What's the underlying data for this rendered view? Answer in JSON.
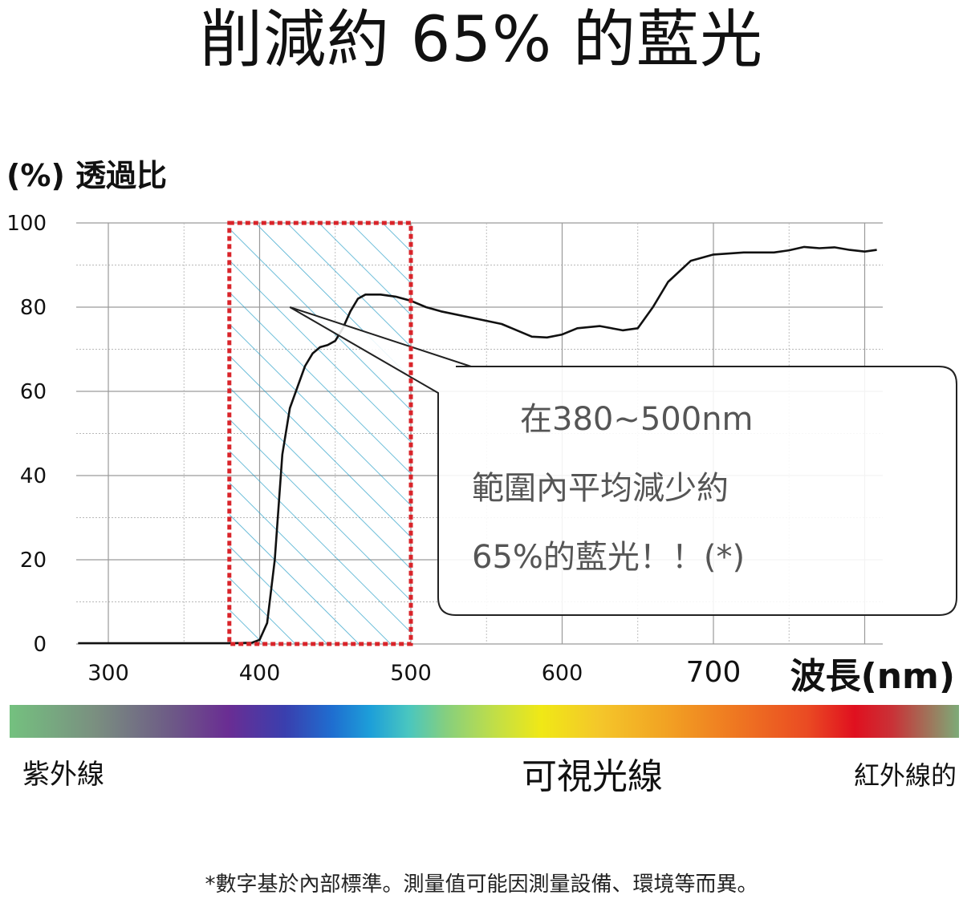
{
  "title": "削減約 65% 的藍光",
  "chart_data": {
    "type": "line",
    "ylabel": "(%) 透過比",
    "xlabel": "波長(nm)",
    "xlim": [
      280,
      1100
    ],
    "ylim": [
      0,
      100
    ],
    "x_ticks": [
      {
        "value": 300,
        "label": "300"
      },
      {
        "value": 400,
        "label": "400"
      },
      {
        "value": 500,
        "label": "500"
      },
      {
        "value": 600,
        "label": "600"
      },
      {
        "value": 700,
        "label": "700"
      }
    ],
    "y_ticks": [
      {
        "value": 0,
        "label": "0"
      },
      {
        "value": 20,
        "label": "20"
      },
      {
        "value": 40,
        "label": "40"
      },
      {
        "value": 60,
        "label": "60"
      },
      {
        "value": 80,
        "label": "80"
      },
      {
        "value": 100,
        "label": "100"
      }
    ],
    "series": [
      {
        "color": "#111111",
        "points": [
          [
            280,
            0.2
          ],
          [
            380,
            0.2
          ],
          [
            395,
            0.3
          ],
          [
            400,
            1.0
          ],
          [
            405,
            5.0
          ],
          [
            410,
            20.0
          ],
          [
            415,
            45.0
          ],
          [
            420,
            56.0
          ],
          [
            425,
            61.0
          ],
          [
            430,
            66.0
          ],
          [
            435,
            69.0
          ],
          [
            440,
            70.5
          ],
          [
            445,
            71.0
          ],
          [
            450,
            72.0
          ],
          [
            455,
            75.0
          ],
          [
            460,
            79.0
          ],
          [
            465,
            82.0
          ],
          [
            470,
            83.0
          ],
          [
            480,
            83.0
          ],
          [
            490,
            82.5
          ],
          [
            500,
            81.5
          ],
          [
            510,
            80.0
          ],
          [
            520,
            79.0
          ],
          [
            540,
            77.5
          ],
          [
            560,
            76.0
          ],
          [
            580,
            73.0
          ],
          [
            590,
            72.8
          ],
          [
            600,
            73.5
          ],
          [
            610,
            75.0
          ],
          [
            625,
            75.5
          ],
          [
            640,
            74.5
          ],
          [
            650,
            75.0
          ],
          [
            660,
            80.0
          ],
          [
            670,
            86.0
          ],
          [
            685,
            91.0
          ],
          [
            700,
            92.5
          ],
          [
            720,
            93.0
          ],
          [
            740,
            93.0
          ],
          [
            750,
            93.5
          ],
          [
            760,
            94.3
          ],
          [
            770,
            94.0
          ],
          [
            780,
            94.2
          ],
          [
            790,
            93.6
          ],
          [
            800,
            93.2
          ],
          [
            808,
            93.6
          ]
        ]
      }
    ],
    "highlight_range": {
      "x": [
        380,
        500
      ],
      "color": "#d9242a",
      "hatch_color": "#2aa0c8"
    },
    "callout": {
      "lines": [
        "在380~500nm",
        "範圍內平均減少約",
        "65%的藍光！！(*)"
      ],
      "pointer_target": [
        420,
        80
      ]
    },
    "grid": true
  },
  "spectrum_bands": {
    "uv": "紫外線",
    "visible": "可視光線",
    "ir": "紅外線的"
  },
  "footnote": "*數字基於內部標準。測量值可能因測量設備、環境等而異。"
}
